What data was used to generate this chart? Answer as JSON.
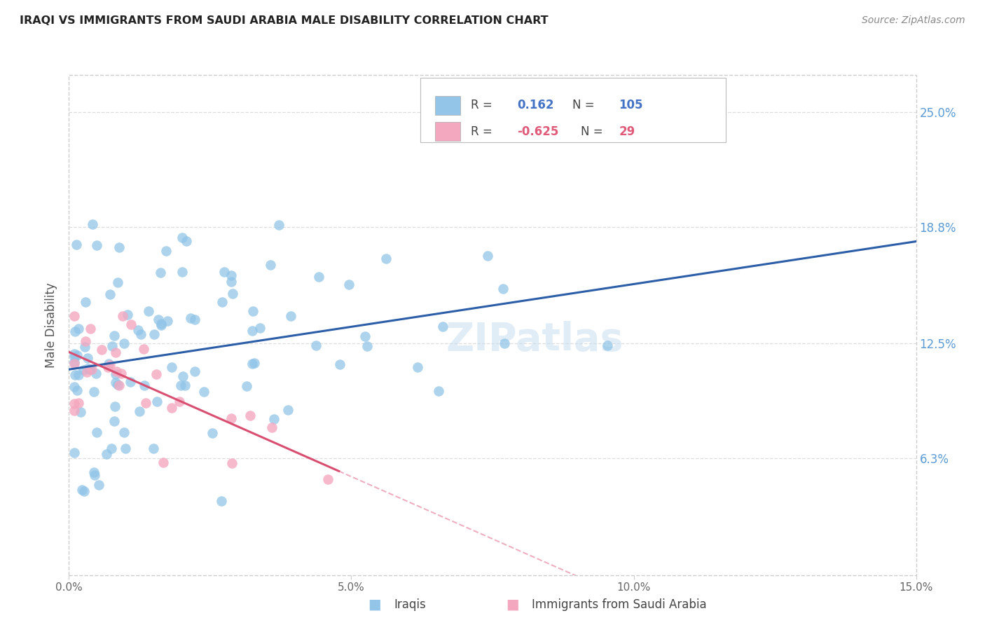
{
  "title": "IRAQI VS IMMIGRANTS FROM SAUDI ARABIA MALE DISABILITY CORRELATION CHART",
  "source": "Source: ZipAtlas.com",
  "ylabel": "Male Disability",
  "ytick_labels": [
    "25.0%",
    "18.8%",
    "12.5%",
    "6.3%"
  ],
  "ytick_values": [
    0.25,
    0.188,
    0.125,
    0.063
  ],
  "xmin": 0.0,
  "xmax": 0.15,
  "ymin": 0.0,
  "ymax": 0.27,
  "iraqis_label": "Iraqis",
  "saudi_label": "Immigrants from Saudi Arabia",
  "blue_color": "#92C5E8",
  "pink_color": "#F4A8C0",
  "blue_line_color": "#2B5EA7",
  "pink_line_color": "#D94F72",
  "blue_val_color": "#4472C4",
  "pink_val_color": "#E05A7A",
  "watermark": "ZIPatlas",
  "text_color": "#444444",
  "grid_color": "#dddddd",
  "right_tick_color": "#5B9BD5"
}
